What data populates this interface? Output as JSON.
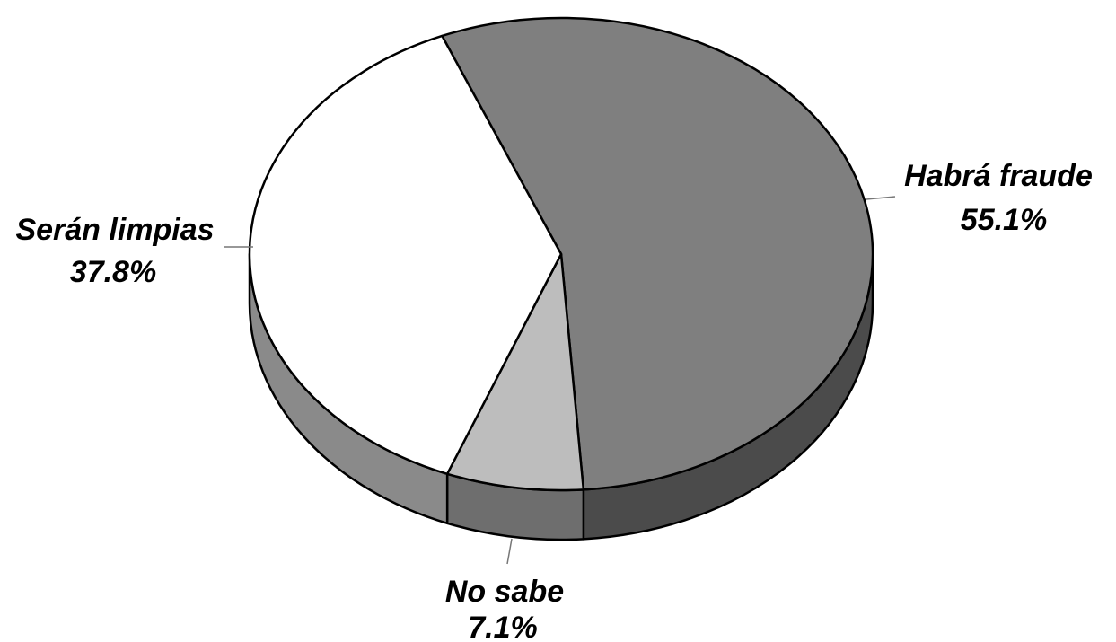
{
  "chart_data": {
    "type": "pie",
    "title": "",
    "three_d": true,
    "slices": [
      {
        "label": "Habrá fraude",
        "value": 55.1,
        "value_label": "55.1%",
        "color": "#7f7f7f",
        "side_color": "#4b4b4b"
      },
      {
        "label": "No sabe",
        "value": 7.1,
        "value_label": "7.1%",
        "color": "#bdbdbd",
        "side_color": "#6e6e6e"
      },
      {
        "label": "Serán limpias",
        "value": 37.8,
        "value_label": "37.8%",
        "color": "#ffffff",
        "side_color": "#8a8a8a"
      }
    ]
  }
}
